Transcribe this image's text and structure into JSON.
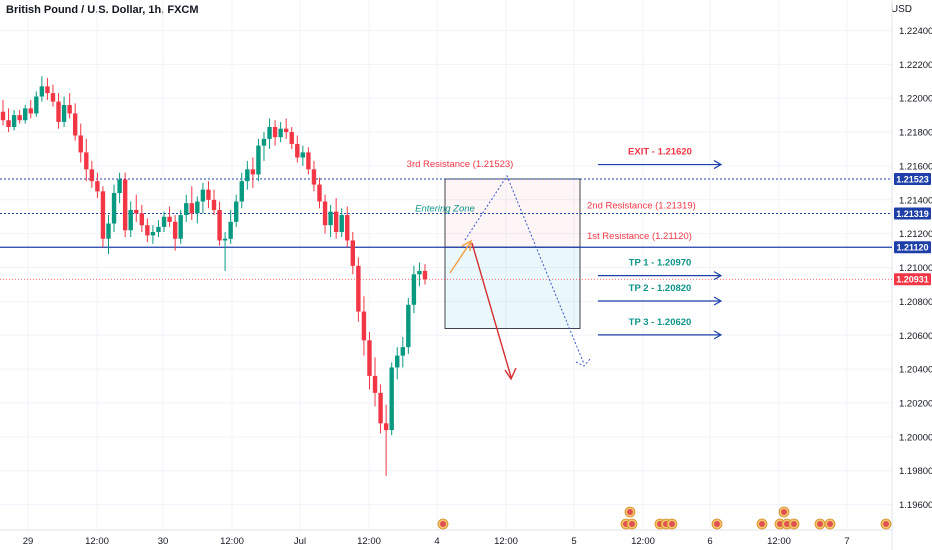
{
  "header": {
    "symbol_title": "British Pound / U.S. Dollar, 1h, FXCM",
    "currency": "USD"
  },
  "colors": {
    "up": "#089981",
    "down": "#f23645",
    "level_blue": "#1e3fa8",
    "resistance_red": "#f23645",
    "tp_teal": "#0f9488",
    "grid": "#f0f3fa",
    "axis_text": "#131722"
  },
  "chart_data": {
    "type": "candlestick",
    "title": "British Pound / U.S. Dollar, 1h, FXCM",
    "y_axis": {
      "label": "USD",
      "ticks": [
        1.224,
        1.222,
        1.22,
        1.218,
        1.216,
        1.214,
        1.212,
        1.21,
        1.208,
        1.206,
        1.204,
        1.202,
        1.2,
        1.198,
        1.196
      ],
      "tick_labels": [
        "1.22400",
        "1.22200",
        "1.22000",
        "1.21800",
        "1.21600",
        "1.21400",
        "1.21200",
        "1.21000",
        "1.20800",
        "1.20600",
        "1.20400",
        "1.20200",
        "1.20000",
        "1.19800",
        "1.19600"
      ],
      "range": [
        1.1945,
        1.2258
      ]
    },
    "x_axis": {
      "labels": [
        "29",
        "12:00",
        "30",
        "12:00",
        "Jul",
        "12:00",
        "4",
        "12:00",
        "5",
        "12:00",
        "6",
        "12:00",
        "7"
      ]
    },
    "price_badges": [
      {
        "value": 1.21523,
        "label": "1.21523",
        "color": "#1e3fa8"
      },
      {
        "value": 1.21319,
        "label": "1.21319",
        "color": "#1e3fa8"
      },
      {
        "value": 1.2112,
        "label": "1.21120",
        "color": "#1e3fa8"
      },
      {
        "value": 1.20931,
        "label": "1.20931",
        "color": "#f23645"
      }
    ],
    "levels": [
      {
        "name": "3rd Resistance",
        "value": 1.21523,
        "label": "3rd Resistance (1.21523)"
      },
      {
        "name": "2nd Resistance",
        "value": 1.21319,
        "label": "2nd Resistance (1.21319)"
      },
      {
        "name": "1st Resistance",
        "value": 1.2112,
        "label": "1st Resistance (1.21120)"
      }
    ],
    "targets": [
      {
        "name": "EXIT",
        "value": 1.2162,
        "label": "EXIT - 1.21620"
      },
      {
        "name": "TP 1",
        "value": 1.2097,
        "label": "TP 1 - 1.20970"
      },
      {
        "name": "TP 2",
        "value": 1.2082,
        "label": "TP 2 - 1.20820"
      },
      {
        "name": "TP 3",
        "value": 1.2062,
        "label": "TP 3 - 1.20620"
      }
    ],
    "annotation": "Entering Zone",
    "candles": [
      [
        1.2192,
        1.2199,
        1.2184,
        1.2187
      ],
      [
        1.2187,
        1.2194,
        1.218,
        1.2183
      ],
      [
        1.2183,
        1.2193,
        1.2181,
        1.219
      ],
      [
        1.219,
        1.2193,
        1.2185,
        1.2187
      ],
      [
        1.2187,
        1.2196,
        1.2185,
        1.2194
      ],
      [
        1.2194,
        1.2199,
        1.2188,
        1.2191
      ],
      [
        1.2191,
        1.2204,
        1.2189,
        1.2201
      ],
      [
        1.2201,
        1.2213,
        1.2198,
        1.2207
      ],
      [
        1.2207,
        1.2212,
        1.2199,
        1.2203
      ],
      [
        1.2203,
        1.2208,
        1.2195,
        1.2198
      ],
      [
        1.2198,
        1.2203,
        1.2182,
        1.2186
      ],
      [
        1.2186,
        1.2201,
        1.2183,
        1.2196
      ],
      [
        1.2196,
        1.2203,
        1.2188,
        1.2191
      ],
      [
        1.2191,
        1.2197,
        1.2175,
        1.2178
      ],
      [
        1.2178,
        1.2185,
        1.2162,
        1.2168
      ],
      [
        1.2168,
        1.2176,
        1.2151,
        1.2158
      ],
      [
        1.2158,
        1.2163,
        1.2147,
        1.2151
      ],
      [
        1.2151,
        1.2156,
        1.2141,
        1.2145
      ],
      [
        1.2145,
        1.2148,
        1.2112,
        1.2117
      ],
      [
        1.2117,
        1.2131,
        1.2108,
        1.2126
      ],
      [
        1.2126,
        1.2149,
        1.2121,
        1.2144
      ],
      [
        1.2144,
        1.2156,
        1.2138,
        1.2152
      ],
      [
        1.2152,
        1.2156,
        1.2118,
        1.2122
      ],
      [
        1.2122,
        1.2139,
        1.2118,
        1.2134
      ],
      [
        1.2134,
        1.2143,
        1.2127,
        1.2132
      ],
      [
        1.2132,
        1.2137,
        1.2121,
        1.2125
      ],
      [
        1.2125,
        1.2129,
        1.2115,
        1.2119
      ],
      [
        1.2119,
        1.2125,
        1.2114,
        1.2121
      ],
      [
        1.2121,
        1.2128,
        1.2118,
        1.2124
      ],
      [
        1.2124,
        1.2133,
        1.2121,
        1.213
      ],
      [
        1.213,
        1.2136,
        1.2124,
        1.2127
      ],
      [
        1.2127,
        1.2131,
        1.211,
        1.2117
      ],
      [
        1.2117,
        1.2134,
        1.2114,
        1.2131
      ],
      [
        1.2131,
        1.2143,
        1.2127,
        1.2138
      ],
      [
        1.2138,
        1.2148,
        1.2128,
        1.2132
      ],
      [
        1.2132,
        1.2142,
        1.2126,
        1.2139
      ],
      [
        1.2139,
        1.215,
        1.2132,
        1.2146
      ],
      [
        1.2146,
        1.2151,
        1.2135,
        1.214
      ],
      [
        1.214,
        1.2146,
        1.2131,
        1.2134
      ],
      [
        1.2134,
        1.2139,
        1.2113,
        1.2116
      ],
      [
        1.2116,
        1.2121,
        1.2098,
        1.2117
      ],
      [
        1.2117,
        1.2134,
        1.2114,
        1.2127
      ],
      [
        1.2127,
        1.2143,
        1.2124,
        1.2139
      ],
      [
        1.2139,
        1.2156,
        1.2135,
        1.2151
      ],
      [
        1.2151,
        1.2163,
        1.2146,
        1.2158
      ],
      [
        1.2158,
        1.2165,
        1.2147,
        1.2155
      ],
      [
        1.2155,
        1.2176,
        1.2151,
        1.2172
      ],
      [
        1.2172,
        1.218,
        1.2163,
        1.2176
      ],
      [
        1.2176,
        1.2188,
        1.217,
        1.2183
      ],
      [
        1.2183,
        1.2187,
        1.2172,
        1.2177
      ],
      [
        1.2177,
        1.2186,
        1.2174,
        1.2182
      ],
      [
        1.2182,
        1.2188,
        1.2176,
        1.218
      ],
      [
        1.218,
        1.2183,
        1.217,
        1.2173
      ],
      [
        1.2173,
        1.2178,
        1.2162,
        1.2165
      ],
      [
        1.2165,
        1.2172,
        1.216,
        1.2168
      ],
      [
        1.2168,
        1.2171,
        1.2155,
        1.2158
      ],
      [
        1.2158,
        1.2163,
        1.2145,
        1.2149
      ],
      [
        1.2149,
        1.2153,
        1.2135,
        1.2139
      ],
      [
        1.2139,
        1.2143,
        1.212,
        1.2125
      ],
      [
        1.2125,
        1.2137,
        1.2118,
        1.2133
      ],
      [
        1.2133,
        1.2141,
        1.2117,
        1.2121
      ],
      [
        1.2121,
        1.2135,
        1.2118,
        1.2131
      ],
      [
        1.2131,
        1.2136,
        1.2112,
        1.2116
      ],
      [
        1.2116,
        1.2121,
        1.2096,
        1.2101
      ],
      [
        1.2101,
        1.2106,
        1.2068,
        1.2074
      ],
      [
        1.2074,
        1.2083,
        1.2048,
        1.2057
      ],
      [
        1.2057,
        1.2062,
        1.2028,
        1.2036
      ],
      [
        1.2036,
        1.2047,
        1.2018,
        1.2026
      ],
      [
        1.2026,
        1.2031,
        1.2002,
        1.2008
      ],
      [
        1.2008,
        1.2019,
        1.1977,
        1.2004
      ],
      [
        1.2004,
        1.2044,
        1.2001,
        1.2041
      ],
      [
        1.2041,
        1.2053,
        1.2034,
        1.2048
      ],
      [
        1.2048,
        1.2059,
        1.2041,
        1.2053
      ],
      [
        1.2053,
        1.2082,
        1.2049,
        1.2078
      ],
      [
        1.2078,
        1.2101,
        1.2073,
        1.2096
      ],
      [
        1.2096,
        1.2103,
        1.2089,
        1.2098
      ],
      [
        1.2098,
        1.2102,
        1.209,
        1.2093
      ]
    ]
  }
}
